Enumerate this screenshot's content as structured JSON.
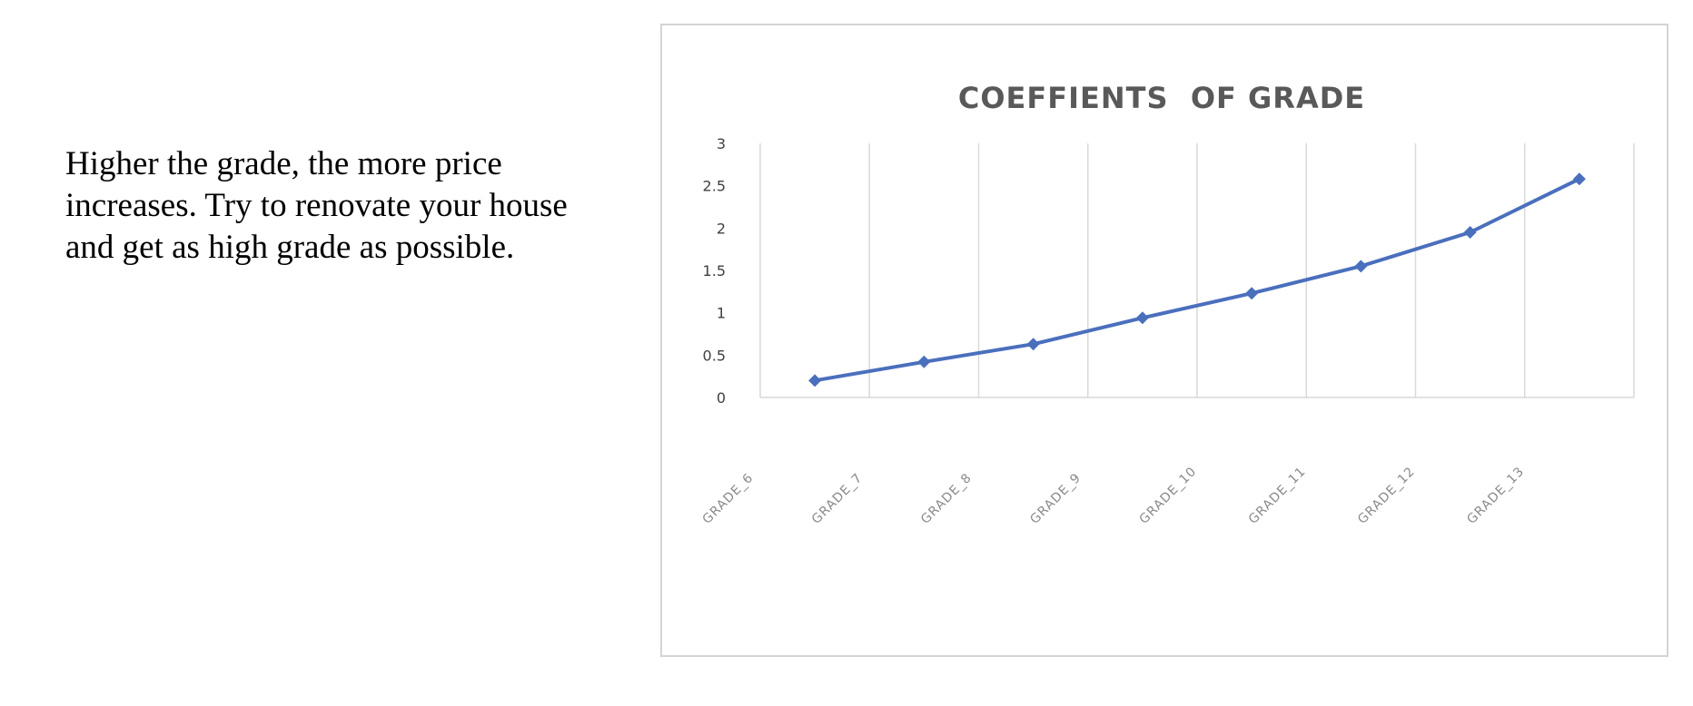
{
  "body_text": {
    "lines": [
      "Higher the grade, the more price",
      "increases. Try to renovate your house",
      "and get as high grade as possible."
    ]
  },
  "chart_data": {
    "type": "line",
    "title": "COEFFIENTS  OF GRADE",
    "categories": [
      "GRADE_6",
      "GRADE_7",
      "GRADE_8",
      "GRADE_9",
      "GRADE_10",
      "GRADE_11",
      "GRADE_12",
      "GRADE_13"
    ],
    "series": [
      {
        "values": [
          0.2,
          0.42,
          0.63,
          0.94,
          1.23,
          1.55,
          1.95,
          2.58
        ]
      }
    ],
    "ylim": [
      0,
      3
    ],
    "yticks": [
      "0",
      "0.5",
      "1",
      "1.5",
      "2",
      "2.5",
      "3"
    ],
    "xlabel": "",
    "ylabel": "",
    "grid": "vertical",
    "legend": "none",
    "colors": {
      "series": "#4a6fbd",
      "grid": "#d9d9d9",
      "axis": "#d9d9d9"
    }
  }
}
